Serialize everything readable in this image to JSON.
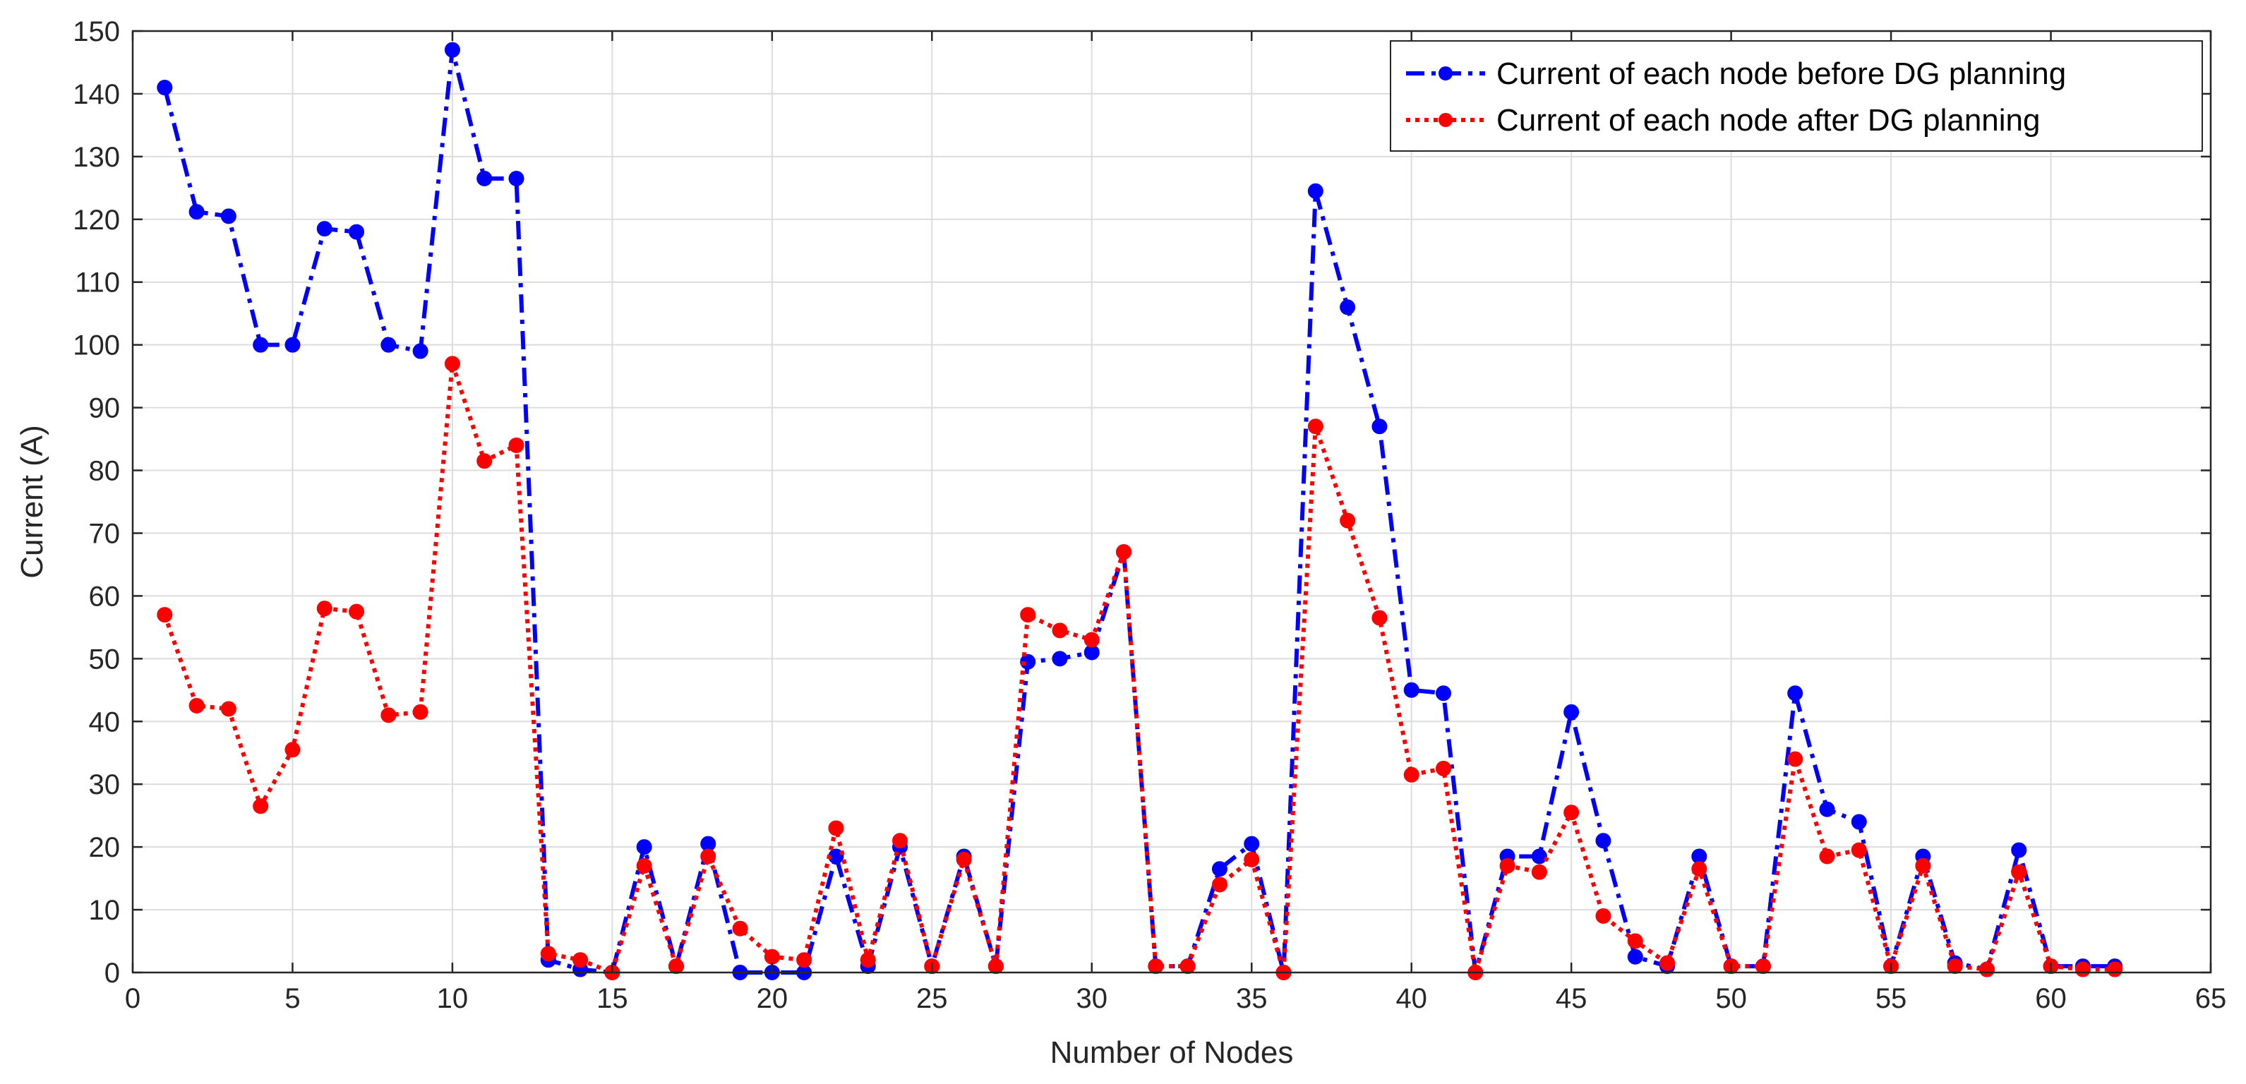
{
  "chart_data": {
    "type": "line",
    "title": "",
    "xlabel": "Number of Nodes",
    "ylabel": "Current (A)",
    "xlim": [
      0,
      65
    ],
    "ylim": [
      0,
      150
    ],
    "xticks": [
      0,
      5,
      10,
      15,
      20,
      25,
      30,
      35,
      40,
      45,
      50,
      55,
      60,
      65
    ],
    "yticks": [
      0,
      10,
      20,
      30,
      40,
      50,
      60,
      70,
      80,
      90,
      100,
      110,
      120,
      130,
      140,
      150
    ],
    "grid": true,
    "legend_position": "top-right",
    "x": [
      1,
      2,
      3,
      4,
      5,
      6,
      7,
      8,
      9,
      10,
      11,
      12,
      13,
      14,
      15,
      16,
      17,
      18,
      19,
      20,
      21,
      22,
      23,
      24,
      25,
      26,
      27,
      28,
      29,
      30,
      31,
      32,
      33,
      34,
      35,
      36,
      37,
      38,
      39,
      40,
      41,
      42,
      43,
      44,
      45,
      46,
      47,
      48,
      49,
      50,
      51,
      52,
      53,
      54,
      55,
      56,
      57,
      58,
      59,
      60,
      61,
      62
    ],
    "series": [
      {
        "name": "Current of each node before DG planning",
        "color": "#0000ff",
        "line_style": "dashdot",
        "marker": "circle",
        "values": [
          141,
          121.2,
          120.5,
          100,
          100,
          118.5,
          118,
          100,
          99,
          147,
          126.5,
          126.5,
          2,
          0.5,
          0,
          20,
          1,
          20.5,
          0,
          0,
          0,
          18.5,
          1,
          20,
          1,
          18.5,
          1,
          49.5,
          50,
          51,
          67,
          1,
          1,
          16.5,
          20.5,
          0,
          124.5,
          106,
          87,
          45,
          44.5,
          0,
          18.5,
          18.5,
          41.5,
          21,
          2.5,
          1,
          18.5,
          1,
          1,
          44.5,
          26,
          24,
          1,
          18.5,
          1.5,
          0.5,
          19.5,
          1,
          1,
          1
        ]
      },
      {
        "name": "Current of each node after DG planning",
        "color": "#ff0000",
        "line_style": "dotted",
        "marker": "circle",
        "values": [
          57,
          42.5,
          42,
          26.5,
          35.5,
          58,
          57.5,
          41,
          41.5,
          97,
          81.5,
          84,
          3,
          2,
          0,
          17,
          1,
          18.5,
          7,
          2.5,
          2,
          23,
          2,
          21,
          1,
          18,
          1,
          57,
          54.5,
          53,
          67,
          1,
          1,
          14,
          18,
          0,
          87,
          72,
          56.5,
          31.5,
          32.5,
          0,
          17,
          16,
          25.5,
          9,
          5,
          1.5,
          16.5,
          1,
          1,
          34,
          18.5,
          19.5,
          1,
          17,
          1,
          0.5,
          16,
          1,
          0.5,
          0.5
        ]
      }
    ]
  }
}
